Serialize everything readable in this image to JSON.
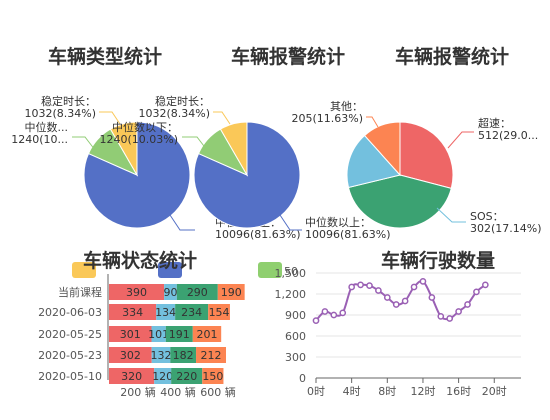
{
  "colors": {
    "blue": "#5470c6",
    "green": "#91cc75",
    "yellow": "#fac858",
    "red": "#ee6666",
    "teal": "#3ba272",
    "orange": "#fc8452",
    "sky": "#73c0de",
    "purple": "#9a60b4",
    "legend_green": "#8fcf6f"
  },
  "chart_data": [
    {
      "type": "pie",
      "title": "车辆类型统计",
      "slices": [
        {
          "name": "中位数以上",
          "value": 10096,
          "label": "中位数以上：\n10096(81.63%)",
          "color": "#5470c6"
        },
        {
          "name": "中位数",
          "value": 1240,
          "label": "中位数...\n1240(10...",
          "color": "#91cc75"
        },
        {
          "name": "稳定时长",
          "value": 1032,
          "label": "稳定时长：\n1032(8.34%)",
          "color": "#fac858"
        }
      ]
    },
    {
      "type": "pie",
      "title": "车辆报警统计",
      "slices": [
        {
          "name": "中位数以上",
          "value": 10096,
          "label": "中位数以上：\n10096(81.63%)",
          "color": "#5470c6"
        },
        {
          "name": "中位数以下",
          "value": 1240,
          "label": "中位数以下：\n1240(10.03%)",
          "color": "#91cc75"
        },
        {
          "name": "稳定时长",
          "value": 1032,
          "label": "稳定时长：\n1032(8.34%)",
          "color": "#fac858"
        }
      ]
    },
    {
      "type": "pie",
      "title": "车辆报警统计",
      "slices": [
        {
          "name": "超速",
          "value": 512,
          "label": "超速：\n512(29.0...",
          "color": "#ee6666"
        },
        {
          "name": "SOS",
          "value": 302,
          "label": "SOS：\n302(17.14%)",
          "color": "#73c0de"
        },
        {
          "name": "其他",
          "value": 205,
          "label": "其他：\n205(11.63%)",
          "color": "#fc8452"
        }
      ]
    },
    {
      "type": "bar",
      "title": "车辆状态统计",
      "categories": [
        "当前课程",
        "2020-06-03",
        "2020-05-25",
        "2020-05-23",
        "2020-05-10"
      ],
      "series": [
        {
          "values": [
            390,
            334,
            301,
            302,
            320
          ],
          "color": "#ee6666"
        },
        {
          "values": [
            90,
            134,
            101,
            132,
            120
          ],
          "color": "#73c0de"
        },
        {
          "values": [
            290,
            234,
            191,
            182,
            220
          ],
          "color": "#3ba272"
        },
        {
          "values": [
            190,
            154,
            201,
            212,
            150
          ],
          "color": "#fc8452"
        }
      ],
      "x_ticks": [
        "200 辆",
        "400 辆",
        "600 辆"
      ],
      "legend_partial": "50"
    },
    {
      "type": "line",
      "title": "车辆行驶数量",
      "x": [
        0,
        1,
        2,
        3,
        4,
        5,
        6,
        7,
        8,
        9,
        10,
        11,
        12,
        13,
        14,
        15,
        16,
        17,
        18,
        19
      ],
      "y": [
        820,
        950,
        900,
        930,
        1300,
        1330,
        1320,
        1250,
        1150,
        1050,
        1100,
        1300,
        1380,
        1150,
        880,
        850,
        950,
        1050,
        1230,
        1330
      ],
      "x_ticks": [
        "0时",
        "4时",
        "8时",
        "12时",
        "16时",
        "20时"
      ],
      "x_tick_values": [
        0,
        4,
        8,
        12,
        16,
        20
      ],
      "y_ticks": [
        "0",
        "300",
        "600",
        "900",
        "1,200",
        "1,500"
      ],
      "y_tick_values": [
        0,
        300,
        600,
        900,
        1200,
        1500
      ],
      "xlim": [
        0,
        23
      ],
      "ylim": [
        0,
        1500
      ],
      "color": "#9a60b4"
    }
  ]
}
